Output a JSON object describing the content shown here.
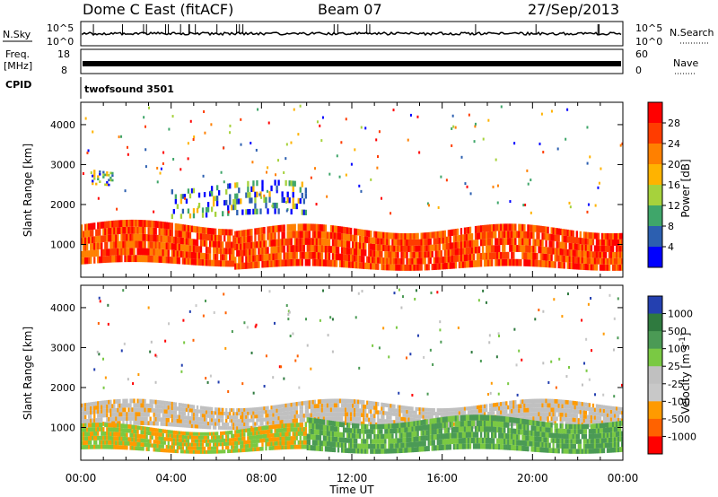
{
  "header": {
    "title": "Dome C East (fitACF)",
    "beam": "Beam 07",
    "date": "27/Sep/2013"
  },
  "strips": {
    "nsky_label": "N.Sky",
    "nsky_ticks": [
      "10^5",
      "10^0"
    ],
    "nsearch_label": "N.Search",
    "nsearch_ticks": [
      "10^5",
      "10^0"
    ],
    "freq_label_line1": "Freq.",
    "freq_label_line2": "[MHz]",
    "freq_ticks": [
      "18",
      "8"
    ],
    "nave_label": "Nave",
    "nave_ticks": [
      "60",
      "0"
    ],
    "cpid_label": "CPID",
    "cpid_text": "twofsound 3501"
  },
  "chart_data": [
    {
      "type": "heatmap",
      "panel": "power",
      "ylabel": "Slant Range [km]",
      "yticks": [
        1000,
        2000,
        3000,
        4000
      ],
      "ylim": [
        180,
        4560
      ],
      "xlabel": "Time UT",
      "xticks": [
        "00:00",
        "04:00",
        "08:00",
        "12:00",
        "16:00",
        "20:00",
        "00:00"
      ],
      "xlim_hours": [
        0,
        24
      ],
      "colorbar_label": "Power [dB]",
      "colorbar_ticks": [
        "28",
        "24",
        "20",
        "16",
        "12",
        "8",
        "4"
      ],
      "colorbar_colors": [
        "#ff0000",
        "#ff3c00",
        "#ff8000",
        "#ffb300",
        "#a6d23c",
        "#3fa66a",
        "#2c5fb0",
        "#0000ff"
      ],
      "bands": [
        {
          "start_h": 0.0,
          "end_h": 6.8,
          "lower_km": 500,
          "upper_km": 1500,
          "value": "high"
        },
        {
          "start_h": 6.8,
          "end_h": 24.0,
          "lower_km": 400,
          "upper_km": 1400,
          "value": "high"
        },
        {
          "start_h": 4.0,
          "end_h": 10.0,
          "lower_km": 1700,
          "upper_km": 2500,
          "value": "low"
        },
        {
          "start_h": 0.5,
          "end_h": 1.5,
          "lower_km": 2500,
          "upper_km": 2900,
          "value": "low"
        }
      ]
    },
    {
      "type": "heatmap",
      "panel": "velocity",
      "ylabel": "Slant Range [km]",
      "yticks": [
        1000,
        2000,
        3000,
        4000
      ],
      "ylim": [
        180,
        4560
      ],
      "xlabel": "Time UT",
      "xticks": [
        "00:00",
        "04:00",
        "08:00",
        "12:00",
        "16:00",
        "20:00",
        "00:00"
      ],
      "xlim_hours": [
        0,
        24
      ],
      "colorbar_label": "Velocity [m s^-1]",
      "colorbar_ticks": [
        "1000",
        "500",
        "100",
        "25",
        "-25",
        "-100",
        "-500",
        "-1000"
      ],
      "colorbar_colors": [
        "#2440b0",
        "#2f7a3f",
        "#4b9a55",
        "#7ac943",
        "#c0c0c0",
        "#c8c8c8",
        "#ff9a00",
        "#ff6200",
        "#ff0000"
      ],
      "bands": [
        {
          "start_h": 0.0,
          "end_h": 24.0,
          "lower_km": 1000,
          "upper_km": 1600,
          "value": "grey"
        },
        {
          "start_h": 0.0,
          "end_h": 10.0,
          "lower_km": 400,
          "upper_km": 1000,
          "value": "green-orange"
        },
        {
          "start_h": 10.0,
          "end_h": 24.0,
          "lower_km": 400,
          "upper_km": 1200,
          "value": "green"
        }
      ]
    }
  ]
}
